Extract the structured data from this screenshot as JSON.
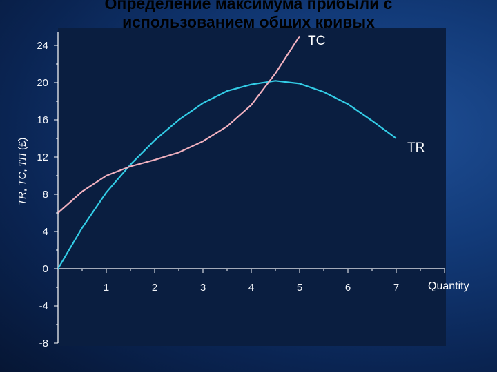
{
  "slide": {
    "title_line1": "Определение максимума прибыли с",
    "title_line2": "использованием общих кривых"
  },
  "colors": {
    "background": "#0d2a5e",
    "plot_area": "#0a1e40",
    "axis": "#ffffff",
    "tr": "#33cce6",
    "tc": "#f2b2c0"
  },
  "chart_data": {
    "type": "line",
    "title": "Определение максимума прибыли с использованием общих кривых",
    "xlabel": "Quantity",
    "ylabel_parts": [
      "TR",
      ", ",
      "TC",
      ", ",
      "TΠ",
      " (£)"
    ],
    "xlim": [
      0,
      8
    ],
    "ylim": [
      -8,
      24
    ],
    "x_ticks": [
      1,
      2,
      3,
      4,
      5,
      6,
      7
    ],
    "y_ticks": [
      -8,
      -4,
      0,
      4,
      8,
      12,
      16,
      20,
      24
    ],
    "grid": false,
    "legend": "none",
    "series": [
      {
        "name": "TR",
        "color": "#33cce6",
        "points": [
          [
            0,
            0
          ],
          [
            0.5,
            4.4
          ],
          [
            1,
            8.2
          ],
          [
            1.5,
            11.2
          ],
          [
            2,
            13.8
          ],
          [
            2.5,
            16
          ],
          [
            3,
            17.8
          ],
          [
            3.5,
            19.1
          ],
          [
            4,
            19.8
          ],
          [
            4.5,
            20.2
          ],
          [
            5,
            19.9
          ],
          [
            5.5,
            19
          ],
          [
            6,
            17.7
          ],
          [
            6.5,
            15.9
          ],
          [
            7,
            14
          ]
        ]
      },
      {
        "name": "TC",
        "color": "#f2b2c0",
        "points": [
          [
            0,
            6
          ],
          [
            0.5,
            8.3
          ],
          [
            1,
            10
          ],
          [
            1.5,
            11
          ],
          [
            2,
            11.7
          ],
          [
            2.5,
            12.5
          ],
          [
            3,
            13.7
          ],
          [
            3.5,
            15.3
          ],
          [
            4,
            17.6
          ],
          [
            4.5,
            21
          ],
          [
            5,
            25
          ]
        ]
      }
    ]
  }
}
